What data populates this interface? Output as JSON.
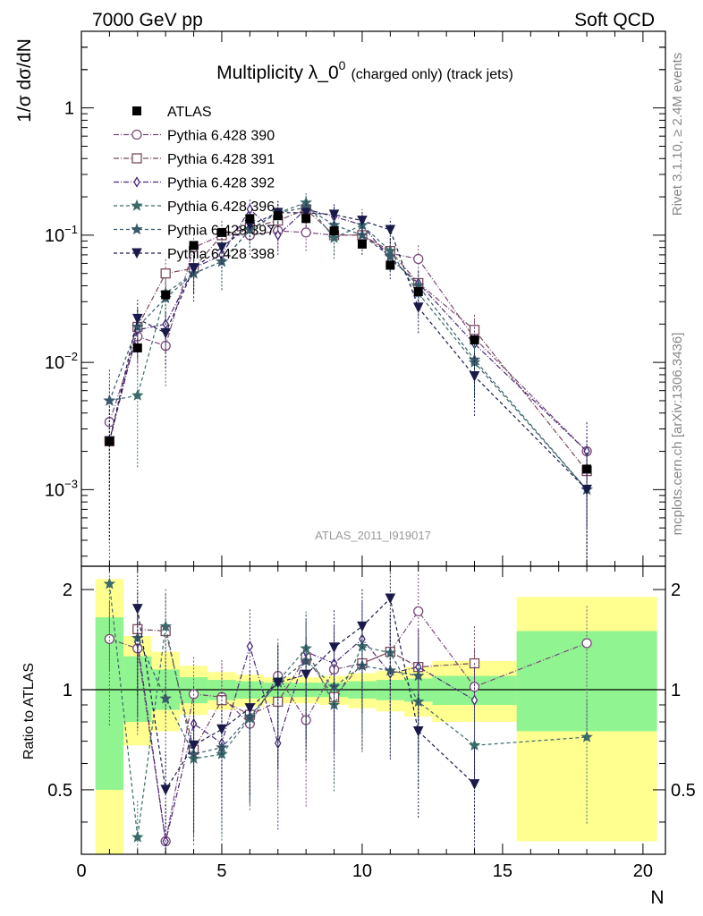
{
  "header": {
    "left": "7000 GeV pp",
    "right": "Soft QCD",
    "title_main": "Multiplicity λ_0",
    "title_sup": "0",
    "title_suffix": "(charged only) (track jets)",
    "analysis_id": "ATLAS_2011_I919017",
    "side_top": "Rivet 3.1.10, ≥ 2.4M events",
    "side_bottom": "mcplots.cern.ch [arXiv:1306.3436]"
  },
  "colors": {
    "band_inner": "#90f490",
    "band_outer": "#ffff90",
    "data": "#000000",
    "p390": "#7a4a7a",
    "p391": "#7a4a5a",
    "p392": "#4a2a7a",
    "p396": "#3a6a6a",
    "p397": "#3a5a6a",
    "p398": "#1a1a4a"
  },
  "chart_data": {
    "type": "scatter",
    "x_label": "N",
    "y_label_top": "1/σ dσ/dN",
    "y_label_bottom": "Ratio to ATLAS",
    "xlim": [
      0,
      20.8
    ],
    "top_ylim": [
      0.00025,
      4.0
    ],
    "top_yscale": "log",
    "bottom_ylim": [
      0.32,
      2.35
    ],
    "bottom_yscale": "log",
    "x_ticks": [
      "0",
      "5",
      "10",
      "15",
      "20"
    ],
    "top_ticks": [
      {
        "v": 1,
        "m": "1",
        "e": ""
      },
      {
        "v": 0.1,
        "m": "10",
        "e": "−1"
      },
      {
        "v": 0.01,
        "m": "10",
        "e": "−2"
      },
      {
        "v": 0.001,
        "m": "10",
        "e": "−3"
      }
    ],
    "bottom_ticks": [
      {
        "v": 2,
        "label": "2"
      },
      {
        "v": 1,
        "label": "1"
      },
      {
        "v": 0.5,
        "label": "0.5"
      }
    ],
    "legend_position": "top-left",
    "data_series": {
      "name": "ATLAS",
      "points": [
        {
          "x": 1,
          "y": 0.0024
        },
        {
          "x": 2,
          "y": 0.013
        },
        {
          "x": 3,
          "y": 0.034
        },
        {
          "x": 4,
          "y": 0.083
        },
        {
          "x": 5,
          "y": 0.105
        },
        {
          "x": 6,
          "y": 0.135
        },
        {
          "x": 7,
          "y": 0.142
        },
        {
          "x": 8,
          "y": 0.135
        },
        {
          "x": 9,
          "y": 0.108
        },
        {
          "x": 10,
          "y": 0.085
        },
        {
          "x": 11,
          "y": 0.058
        },
        {
          "x": 12,
          "y": 0.036
        },
        {
          "x": 14,
          "y": 0.015
        },
        {
          "x": 18,
          "y": 0.00145
        }
      ]
    },
    "bands": [
      {
        "x0": 0.5,
        "x1": 1.5,
        "inner": [
          0.5,
          1.65
        ],
        "outer": [
          0.32,
          2.15
        ]
      },
      {
        "x0": 1.5,
        "x1": 2.5,
        "inner": [
          0.8,
          1.26
        ],
        "outer": [
          0.68,
          1.45
        ]
      },
      {
        "x0": 2.5,
        "x1": 3.5,
        "inner": [
          0.87,
          1.15
        ],
        "outer": [
          0.75,
          1.3
        ]
      },
      {
        "x0": 3.5,
        "x1": 4.5,
        "inner": [
          0.91,
          1.09
        ],
        "outer": [
          0.84,
          1.18
        ]
      },
      {
        "x0": 4.5,
        "x1": 5.5,
        "inner": [
          0.93,
          1.07
        ],
        "outer": [
          0.87,
          1.13
        ]
      },
      {
        "x0": 5.5,
        "x1": 6.5,
        "inner": [
          0.94,
          1.06
        ],
        "outer": [
          0.89,
          1.11
        ]
      },
      {
        "x0": 6.5,
        "x1": 7.5,
        "inner": [
          0.95,
          1.05
        ],
        "outer": [
          0.91,
          1.09
        ]
      },
      {
        "x0": 7.5,
        "x1": 8.5,
        "inner": [
          0.95,
          1.05
        ],
        "outer": [
          0.91,
          1.09
        ]
      },
      {
        "x0": 8.5,
        "x1": 9.5,
        "inner": [
          0.95,
          1.05
        ],
        "outer": [
          0.9,
          1.1
        ]
      },
      {
        "x0": 9.5,
        "x1": 10.5,
        "inner": [
          0.94,
          1.06
        ],
        "outer": [
          0.88,
          1.12
        ]
      },
      {
        "x0": 10.5,
        "x1": 11.5,
        "inner": [
          0.93,
          1.07
        ],
        "outer": [
          0.86,
          1.14
        ]
      },
      {
        "x0": 11.5,
        "x1": 12.5,
        "inner": [
          0.92,
          1.08
        ],
        "outer": [
          0.83,
          1.17
        ]
      },
      {
        "x0": 12.5,
        "x1": 15.5,
        "inner": [
          0.9,
          1.1
        ],
        "outer": [
          0.8,
          1.22
        ]
      },
      {
        "x0": 15.5,
        "x1": 20.5,
        "inner": [
          0.75,
          1.5
        ],
        "outer": [
          0.35,
          1.9
        ]
      }
    ],
    "series": [
      {
        "name": "Pythia 6.428 390",
        "key": "p390",
        "marker": "circle",
        "dash": "6 2 1 2",
        "x": [
          1,
          2,
          3,
          4,
          5,
          6,
          7,
          8,
          9,
          10,
          11,
          12,
          14,
          18
        ],
        "y": [
          0.0034,
          0.016,
          0.0135,
          0.08,
          0.1,
          0.1,
          0.108,
          0.105,
          0.1,
          0.1,
          0.072,
          0.065,
          0.0155,
          0.002
        ],
        "err": [
          0.0035,
          0.008,
          0.007,
          0.025,
          0.03,
          0.03,
          0.03,
          0.03,
          0.03,
          0.03,
          0.02,
          0.02,
          0.006,
          0.0015
        ]
      },
      {
        "name": "Pythia 6.428 391",
        "key": "p391",
        "marker": "square",
        "dash": "6 2 1 2",
        "x": [
          1,
          2,
          3,
          4,
          5,
          6,
          7,
          8,
          9,
          10,
          11,
          12,
          14,
          18
        ],
        "y": [
          0.0024,
          0.019,
          0.05,
          0.055,
          0.1,
          0.115,
          0.13,
          0.16,
          0.1,
          0.1,
          0.075,
          0.042,
          0.018,
          0.0014
        ],
        "err": [
          0.002,
          0.008,
          0.015,
          0.02,
          0.03,
          0.03,
          0.03,
          0.035,
          0.03,
          0.03,
          0.02,
          0.012,
          0.006,
          0.0012
        ]
      },
      {
        "name": "Pythia 6.428 392",
        "key": "p392",
        "marker": "diamond",
        "dash": "6 2 1 2",
        "x": [
          1,
          2,
          3,
          4,
          5,
          6,
          7,
          8,
          9,
          10,
          11,
          12,
          14,
          18
        ],
        "y": [
          0.0024,
          0.018,
          0.02,
          0.055,
          0.07,
          0.16,
          0.1,
          0.16,
          0.14,
          0.12,
          0.065,
          0.042,
          0.014,
          0.002
        ],
        "err": [
          0.002,
          0.008,
          0.008,
          0.02,
          0.025,
          0.035,
          0.03,
          0.035,
          0.03,
          0.03,
          0.02,
          0.012,
          0.005,
          0.0015
        ]
      },
      {
        "name": "Pythia 6.428 396",
        "key": "p396",
        "marker": "star",
        "dash": "4 3",
        "x": [
          1,
          2,
          3,
          4,
          5,
          6,
          7,
          8,
          9,
          10,
          11,
          12,
          14,
          18
        ],
        "y": [
          0.005,
          0.0055,
          0.035,
          0.05,
          0.062,
          0.11,
          0.15,
          0.18,
          0.095,
          0.12,
          0.075,
          0.035,
          0.01,
          0.001
        ],
        "err": [
          0.004,
          0.004,
          0.012,
          0.02,
          0.025,
          0.03,
          0.035,
          0.04,
          0.03,
          0.03,
          0.02,
          0.012,
          0.005,
          0.001
        ]
      },
      {
        "name": "Pythia 6.428 397",
        "key": "p397",
        "marker": "star",
        "dash": "4 3",
        "x": [
          1,
          2,
          3,
          4,
          5,
          6,
          7,
          8,
          9,
          10,
          11,
          12,
          14,
          18
        ],
        "y": [
          0.005,
          0.019,
          0.032,
          0.05,
          0.062,
          0.11,
          0.15,
          0.165,
          0.12,
          0.1,
          0.068,
          0.04,
          0.0105,
          0.001
        ],
        "err": [
          0.004,
          0.008,
          0.012,
          0.02,
          0.025,
          0.03,
          0.035,
          0.04,
          0.03,
          0.03,
          0.02,
          0.012,
          0.005,
          0.001
        ]
      },
      {
        "name": "Pythia 6.428 398",
        "key": "p398",
        "marker": "triangle-down",
        "dash": "4 3",
        "x": [
          1,
          2,
          3,
          4,
          5,
          6,
          7,
          8,
          9,
          10,
          11,
          12,
          14,
          18
        ],
        "y": [
          0.0024,
          0.022,
          0.017,
          0.055,
          0.08,
          0.12,
          0.15,
          0.15,
          0.145,
          0.13,
          0.11,
          0.027,
          0.0078,
          0.001
        ],
        "err": [
          0.002,
          0.009,
          0.008,
          0.02,
          0.025,
          0.03,
          0.035,
          0.035,
          0.03,
          0.03,
          0.025,
          0.01,
          0.004,
          0.001
        ]
      }
    ],
    "ratios": [
      {
        "key": "p390",
        "x": [
          1,
          2,
          3,
          4,
          5,
          6,
          7,
          8,
          9,
          10,
          11,
          12,
          14,
          18
        ],
        "y": [
          1.42,
          1.33,
          0.35,
          0.97,
          0.95,
          0.79,
          1.1,
          0.81,
          1.15,
          1.2,
          1.3,
          1.72,
          1.02,
          1.38
        ]
      },
      {
        "key": "p391",
        "x": [
          2,
          3,
          4,
          5,
          6,
          7,
          8,
          9,
          10,
          11,
          12,
          14
        ],
        "y": [
          1.52,
          1.5,
          0.66,
          0.93,
          0.84,
          0.92,
          1.25,
          0.95,
          1.2,
          1.3,
          1.17,
          1.2
        ]
      },
      {
        "key": "p392",
        "x": [
          2,
          3,
          4,
          5,
          6,
          7,
          8,
          9,
          10,
          11,
          12,
          14
        ],
        "y": [
          1.39,
          0.35,
          0.79,
          0.69,
          1.35,
          0.69,
          1.3,
          1.2,
          1.42,
          1.12,
          1.17,
          0.93
        ]
      },
      {
        "key": "p396",
        "x": [
          1,
          2,
          3,
          4,
          5,
          6,
          7,
          8,
          9,
          10,
          11,
          12,
          14,
          18
        ],
        "y": [
          2.08,
          0.36,
          1.55,
          0.62,
          0.64,
          0.82,
          1.06,
          1.33,
          0.9,
          1.35,
          1.29,
          0.92,
          0.68,
          0.72
        ]
      },
      {
        "key": "p397",
        "x": [
          2,
          3,
          4,
          5,
          6,
          7,
          8,
          9,
          10,
          11,
          12
        ],
        "y": [
          1.43,
          0.94,
          0.64,
          0.67,
          0.83,
          1.05,
          1.22,
          1.02,
          1.18,
          1.14,
          1.1
        ]
      },
      {
        "key": "p398",
        "x": [
          2,
          3,
          4,
          5,
          6,
          7,
          8,
          9,
          10,
          11,
          12,
          14
        ],
        "y": [
          1.75,
          0.5,
          0.68,
          0.76,
          0.88,
          1.05,
          1.11,
          1.34,
          1.55,
          1.88,
          0.75,
          0.52
        ]
      }
    ]
  }
}
